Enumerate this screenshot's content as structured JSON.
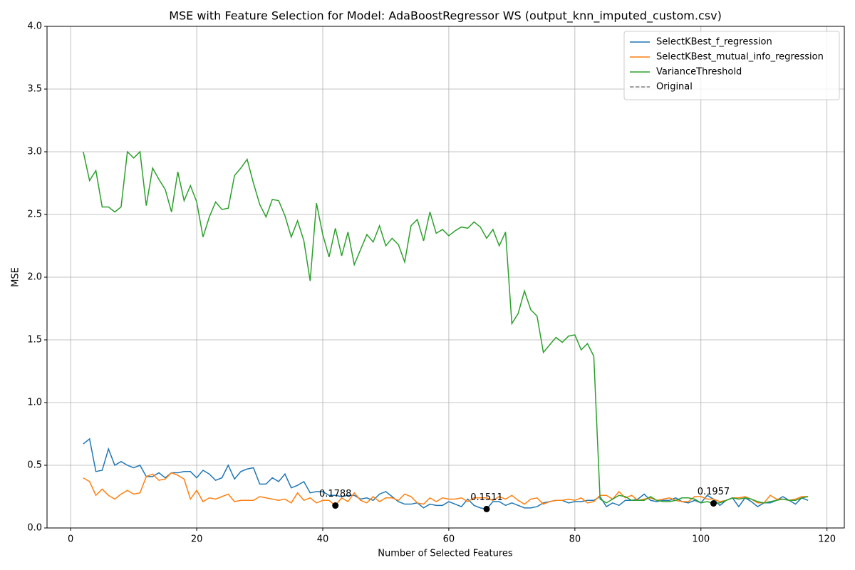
{
  "chart_data": {
    "type": "line",
    "title": "MSE with Feature Selection for Model: AdaBoostRegressor WS (output_knn_imputed_custom.csv)",
    "x_label": "Number of Selected Features",
    "y_label": "MSE",
    "x": [
      2,
      3,
      4,
      5,
      6,
      7,
      8,
      9,
      10,
      11,
      12,
      13,
      14,
      15,
      16,
      17,
      18,
      19,
      20,
      21,
      22,
      23,
      24,
      25,
      26,
      27,
      28,
      29,
      30,
      31,
      32,
      33,
      34,
      35,
      36,
      37,
      38,
      39,
      40,
      41,
      42,
      43,
      44,
      45,
      46,
      47,
      48,
      49,
      50,
      51,
      52,
      53,
      54,
      55,
      56,
      57,
      58,
      59,
      60,
      61,
      62,
      63,
      64,
      65,
      66,
      67,
      68,
      69,
      70,
      71,
      72,
      73,
      74,
      75,
      76,
      77,
      78,
      79,
      80,
      81,
      82,
      83,
      84,
      85,
      86,
      87,
      88,
      89,
      90,
      91,
      92,
      93,
      94,
      95,
      96,
      97,
      98,
      99,
      100,
      101,
      102,
      103,
      104,
      105,
      106,
      107,
      108,
      109,
      110,
      111,
      112,
      113,
      114,
      115,
      116,
      117
    ],
    "series": [
      {
        "name": "SelectKBest_f_regression",
        "color": "#1f77b4",
        "values": [
          0.67,
          0.71,
          0.45,
          0.46,
          0.63,
          0.5,
          0.53,
          0.5,
          0.48,
          0.5,
          0.41,
          0.41,
          0.44,
          0.4,
          0.44,
          0.44,
          0.45,
          0.45,
          0.4,
          0.46,
          0.43,
          0.38,
          0.4,
          0.5,
          0.39,
          0.45,
          0.47,
          0.48,
          0.35,
          0.35,
          0.4,
          0.37,
          0.43,
          0.32,
          0.34,
          0.37,
          0.28,
          0.29,
          0.29,
          0.26,
          0.26,
          0.25,
          0.26,
          0.26,
          0.23,
          0.24,
          0.22,
          0.27,
          0.29,
          0.25,
          0.21,
          0.19,
          0.19,
          0.2,
          0.16,
          0.19,
          0.18,
          0.18,
          0.21,
          0.19,
          0.17,
          0.23,
          0.18,
          0.16,
          0.1511,
          0.21,
          0.21,
          0.18,
          0.2,
          0.18,
          0.16,
          0.16,
          0.17,
          0.2,
          0.21,
          0.22,
          0.22,
          0.2,
          0.21,
          0.21,
          0.22,
          0.22,
          0.25,
          0.17,
          0.2,
          0.18,
          0.22,
          0.22,
          0.23,
          0.27,
          0.22,
          0.21,
          0.22,
          0.22,
          0.24,
          0.21,
          0.2,
          0.22,
          0.2,
          0.26,
          0.23,
          0.18,
          0.22,
          0.24,
          0.17,
          0.24,
          0.21,
          0.17,
          0.2,
          0.2,
          0.22,
          0.25,
          0.22,
          0.19,
          0.24,
          0.22
        ]
      },
      {
        "name": "SelectKBest_mutual_info_regression",
        "color": "#ff7f0e",
        "values": [
          0.4,
          0.37,
          0.26,
          0.31,
          0.26,
          0.23,
          0.27,
          0.3,
          0.27,
          0.28,
          0.41,
          0.43,
          0.38,
          0.39,
          0.44,
          0.42,
          0.39,
          0.23,
          0.3,
          0.21,
          0.24,
          0.23,
          0.25,
          0.27,
          0.21,
          0.22,
          0.22,
          0.22,
          0.25,
          0.24,
          0.23,
          0.22,
          0.23,
          0.2,
          0.28,
          0.22,
          0.24,
          0.2,
          0.22,
          0.22,
          0.1788,
          0.24,
          0.21,
          0.28,
          0.22,
          0.2,
          0.25,
          0.21,
          0.24,
          0.24,
          0.22,
          0.27,
          0.25,
          0.2,
          0.19,
          0.24,
          0.21,
          0.24,
          0.23,
          0.23,
          0.24,
          0.21,
          0.24,
          0.24,
          0.24,
          0.22,
          0.25,
          0.23,
          0.26,
          0.22,
          0.19,
          0.23,
          0.24,
          0.19,
          0.21,
          0.22,
          0.22,
          0.23,
          0.22,
          0.24,
          0.2,
          0.21,
          0.26,
          0.26,
          0.23,
          0.29,
          0.24,
          0.26,
          0.22,
          0.23,
          0.24,
          0.22,
          0.23,
          0.24,
          0.22,
          0.21,
          0.21,
          0.25,
          0.25,
          0.23,
          0.23,
          0.21,
          0.22,
          0.24,
          0.24,
          0.25,
          0.23,
          0.2,
          0.2,
          0.26,
          0.23,
          0.23,
          0.22,
          0.23,
          0.25,
          0.25
        ]
      },
      {
        "name": "VarianceThreshold",
        "color": "#2ca02c",
        "values": [
          3.0,
          2.77,
          2.85,
          2.56,
          2.56,
          2.52,
          2.56,
          3.0,
          2.95,
          3.0,
          2.57,
          2.87,
          2.78,
          2.7,
          2.52,
          2.84,
          2.61,
          2.73,
          2.6,
          2.32,
          2.48,
          2.6,
          2.54,
          2.55,
          2.81,
          2.87,
          2.94,
          2.75,
          2.58,
          2.48,
          2.62,
          2.61,
          2.49,
          2.32,
          2.45,
          2.29,
          1.97,
          2.59,
          2.34,
          2.16,
          2.39,
          2.17,
          2.36,
          2.1,
          2.22,
          2.34,
          2.28,
          2.41,
          2.25,
          2.31,
          2.26,
          2.12,
          2.41,
          2.46,
          2.29,
          2.52,
          2.35,
          2.38,
          2.33,
          2.37,
          2.4,
          2.39,
          2.44,
          2.4,
          2.31,
          2.38,
          2.25,
          2.36,
          1.63,
          1.71,
          1.89,
          1.74,
          1.69,
          1.4,
          1.46,
          1.52,
          1.48,
          1.53,
          1.54,
          1.42,
          1.47,
          1.37,
          0.23,
          0.2,
          0.23,
          0.26,
          0.25,
          0.22,
          0.22,
          0.22,
          0.25,
          0.22,
          0.21,
          0.21,
          0.22,
          0.24,
          0.24,
          0.23,
          0.2,
          0.21,
          0.1957,
          0.2,
          0.22,
          0.24,
          0.23,
          0.24,
          0.23,
          0.21,
          0.2,
          0.21,
          0.22,
          0.23,
          0.22,
          0.22,
          0.24,
          0.25
        ]
      }
    ],
    "legend_entries": [
      {
        "name": "Original",
        "color": "#808080",
        "linestyle": "dashed"
      }
    ],
    "annotations": [
      {
        "x": 42,
        "y": 0.1788,
        "color": "#000000"
      },
      {
        "x": 66,
        "y": 0.1511,
        "color": "#000000"
      },
      {
        "x": 102,
        "y": 0.1957,
        "color": "#000000"
      }
    ],
    "xlim": [
      -3.75,
      122.75
    ],
    "xticks": [
      0,
      20,
      40,
      60,
      80,
      100,
      120
    ],
    "ylim": [
      0,
      4
    ],
    "yticks": [
      {
        "value": 0,
        "label": "0.0"
      },
      0.5,
      {
        "value": 1,
        "label": "1.0"
      },
      1.5,
      {
        "value": 2,
        "label": "2.0"
      },
      2.5,
      {
        "value": 3,
        "label": "3.0"
      },
      3.5,
      {
        "value": 4,
        "label": "4.0"
      }
    ],
    "grid": true,
    "legend_position": "upper right"
  }
}
